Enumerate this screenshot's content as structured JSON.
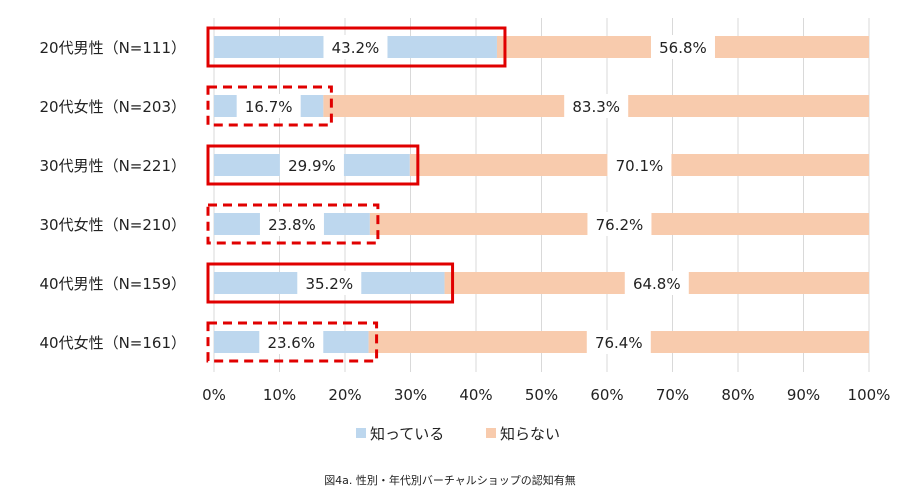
{
  "chart_data": {
    "type": "bar",
    "stacked": true,
    "orientation": "horizontal",
    "title": "",
    "caption": "図4a. 性別・年代別バーチャルショップの認知有無",
    "categories": [
      "20代男性（N=111）",
      "20代女性（N=203）",
      "30代男性（N=221）",
      "30代女性（N=210）",
      "40代男性（N=159）",
      "40代女性（N=161）"
    ],
    "series": [
      {
        "name": "知っている",
        "color": "#bdd7ee",
        "values": [
          43.2,
          16.7,
          29.9,
          23.8,
          35.2,
          23.6
        ],
        "labels": [
          "43.2%",
          "16.7%",
          "29.9%",
          "23.8%",
          "35.2%",
          "23.6%"
        ]
      },
      {
        "name": "知らない",
        "color": "#f8cbad",
        "values": [
          56.8,
          83.3,
          70.1,
          76.2,
          64.8,
          76.4
        ],
        "labels": [
          "56.8%",
          "83.3%",
          "70.1%",
          "76.2%",
          "64.8%",
          "76.4%"
        ]
      }
    ],
    "highlight_boxes": [
      "solid",
      "dashed",
      "solid",
      "dashed",
      "solid",
      "dashed"
    ],
    "highlight_color": "#e00000",
    "xlim": [
      0,
      100
    ],
    "xticks": [
      "0%",
      "10%",
      "20%",
      "30%",
      "40%",
      "50%",
      "60%",
      "70%",
      "80%",
      "90%",
      "100%"
    ],
    "grid": true,
    "legend": "bottom"
  }
}
